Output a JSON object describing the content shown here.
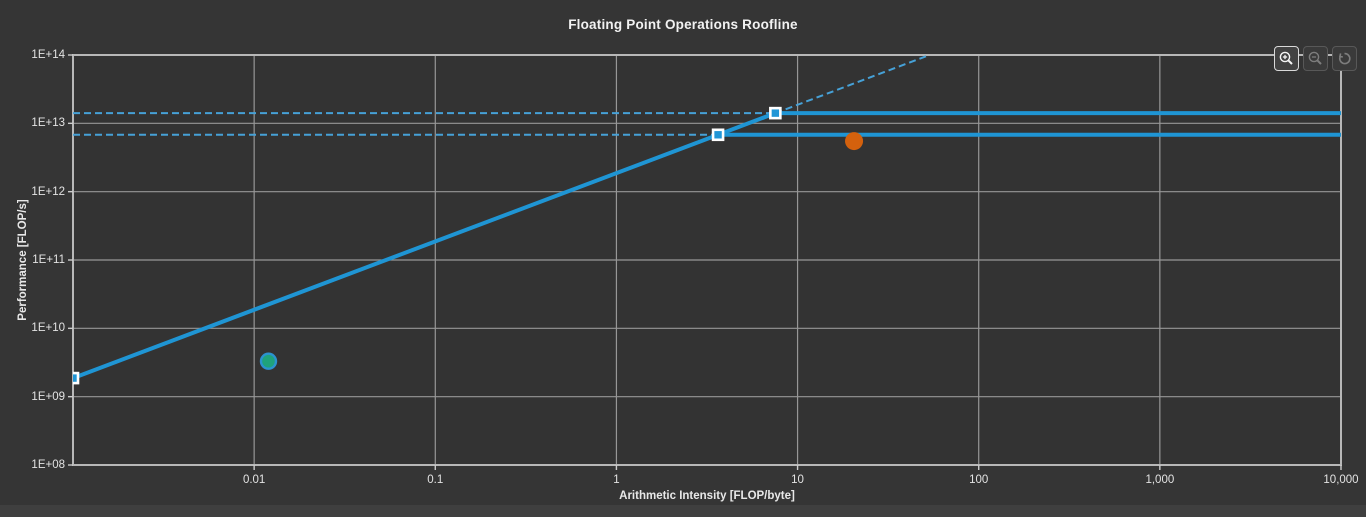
{
  "toolbar": {
    "buttons": [
      {
        "id": "zoom-in",
        "icon": "magnifier-plus-icon",
        "state": "active"
      },
      {
        "id": "zoom-out",
        "icon": "magnifier-minus-icon",
        "state": "disabled"
      },
      {
        "id": "undo-zoom",
        "icon": "undo-icon",
        "state": "disabled"
      }
    ]
  },
  "colors": {
    "background": "#353535",
    "plot_background": "#333333",
    "gridline": "#979797",
    "axis_border": "#b8b8b8",
    "tick_mark": "#cccccc",
    "roofline_solid_blue": "#1f95d4",
    "roofline_dashed_blue": "#46a1d7",
    "marker_square_fill": "#2196d6",
    "marker_square_border": "#ffffff",
    "achieved_orange": "#d4610d",
    "achieved_teal_fill": "#1fa37c",
    "achieved_teal_border": "#2b93cf",
    "text": "#e8e8e8"
  },
  "chart_data": {
    "type": "line",
    "subtype": "roofline",
    "title": "Floating Point Operations Roofline",
    "xlabel": "Arithmetic Intensity [FLOP/byte]",
    "ylabel": "Performance [FLOP/s]",
    "xscale": "log",
    "yscale": "log",
    "xlim": [
      0.001,
      10000
    ],
    "ylim": [
      100000000.0,
      100000000000000.0
    ],
    "grid": true,
    "legend": null,
    "x_ticks": [
      {
        "value": 0.01,
        "label": "0.01"
      },
      {
        "value": 0.1,
        "label": "0.1"
      },
      {
        "value": 1,
        "label": "1"
      },
      {
        "value": 10,
        "label": "10"
      },
      {
        "value": 100,
        "label": "100"
      },
      {
        "value": 1000,
        "label": "1,000"
      },
      {
        "value": 10000,
        "label": "10,000"
      }
    ],
    "y_ticks": [
      {
        "value": 100000000000000.0,
        "label": "1E+14"
      },
      {
        "value": 10000000000000.0,
        "label": "1E+13"
      },
      {
        "value": 1000000000000.0,
        "label": "1E+12"
      },
      {
        "value": 100000000000.0,
        "label": "1E+11"
      },
      {
        "value": 10000000000.0,
        "label": "1E+10"
      },
      {
        "value": 1000000000.0,
        "label": "1E+09"
      },
      {
        "value": 100000000.0,
        "label": "1E+08"
      }
    ],
    "memory_bandwidth_bytes_per_s": 1870000000000.0,
    "ceilings_flop_per_s": {
      "upper": 14100000000000.0,
      "lower": 6800000000000.0
    },
    "series": [
      {
        "name": "memory-bandwidth-roofline",
        "style": "solid",
        "points": [
          [
            0.001,
            1870000000.0
          ],
          [
            7.54,
            14100000000000.0
          ]
        ]
      },
      {
        "name": "memory-bandwidth-extension",
        "style": "dashed",
        "points": [
          [
            7.54,
            14100000000000.0
          ],
          [
            53.5,
            100000000000000.0
          ]
        ]
      },
      {
        "name": "peak-ceiling-upper",
        "style": "solid",
        "points": [
          [
            7.54,
            14100000000000.0
          ],
          [
            10000,
            14100000000000.0
          ]
        ]
      },
      {
        "name": "peak-ceiling-upper-extension",
        "style": "dashed",
        "points": [
          [
            0.001,
            14100000000000.0
          ],
          [
            7.54,
            14100000000000.0
          ]
        ]
      },
      {
        "name": "peak-ceiling-lower",
        "style": "solid",
        "points": [
          [
            3.64,
            6800000000000.0
          ],
          [
            10000,
            6800000000000.0
          ]
        ]
      },
      {
        "name": "peak-ceiling-lower-extension",
        "style": "dashed",
        "points": [
          [
            0.001,
            6800000000000.0
          ],
          [
            3.64,
            6800000000000.0
          ]
        ]
      }
    ],
    "breakpoint_markers": [
      {
        "x": 0.001,
        "y": 1870000000.0,
        "shape": "square"
      },
      {
        "x": 3.64,
        "y": 6800000000000.0,
        "shape": "square"
      },
      {
        "x": 7.54,
        "y": 14100000000000.0,
        "shape": "square"
      }
    ],
    "achieved_points": [
      {
        "name": "achieved-point-orange",
        "x": 20.5,
        "y": 5500000000000.0,
        "color": "#d4610d"
      },
      {
        "name": "achieved-point-teal",
        "x": 0.012,
        "y": 3300000000.0,
        "color": "#1fa37c"
      }
    ]
  }
}
